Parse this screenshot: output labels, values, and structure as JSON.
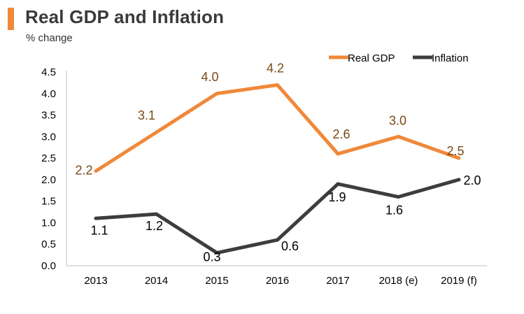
{
  "title": "Real GDP and Inflation",
  "subtitle": "% change",
  "colors": {
    "accent": "#F0883A",
    "gdp": "#F0883A",
    "inflation": "#3D3D3D",
    "gdp_label": "#7A4A16",
    "axis": "#BFBFBF"
  },
  "chart_data": {
    "type": "line",
    "title": "Real GDP and Inflation",
    "ylabel": "% change",
    "xlabel": "",
    "categories": [
      "2013",
      "2014",
      "2015",
      "2016",
      "2017",
      "2018 (e)",
      "2019 (f)"
    ],
    "yticks": [
      "0.0",
      "0.5",
      "1.0",
      "1.5",
      "2.0",
      "2.5",
      "3.0",
      "3.5",
      "4.0",
      "4.5"
    ],
    "ylim": [
      0,
      4.5
    ],
    "grid": false,
    "legend_position": "top-right",
    "series": [
      {
        "name": "Real GDP",
        "values": [
          2.2,
          3.1,
          4.0,
          4.2,
          2.6,
          3.0,
          2.5
        ],
        "labels": [
          "2.2",
          "3.1",
          "4.0",
          "4.2",
          "2.6",
          "3.0",
          "2.5"
        ]
      },
      {
        "name": "Inflation",
        "values": [
          1.1,
          1.2,
          0.3,
          0.6,
          1.9,
          1.6,
          2.0
        ],
        "labels": [
          "1.1",
          "1.2",
          "0.3",
          "0.6",
          "1.9",
          "1.6",
          "2.0"
        ]
      }
    ]
  }
}
